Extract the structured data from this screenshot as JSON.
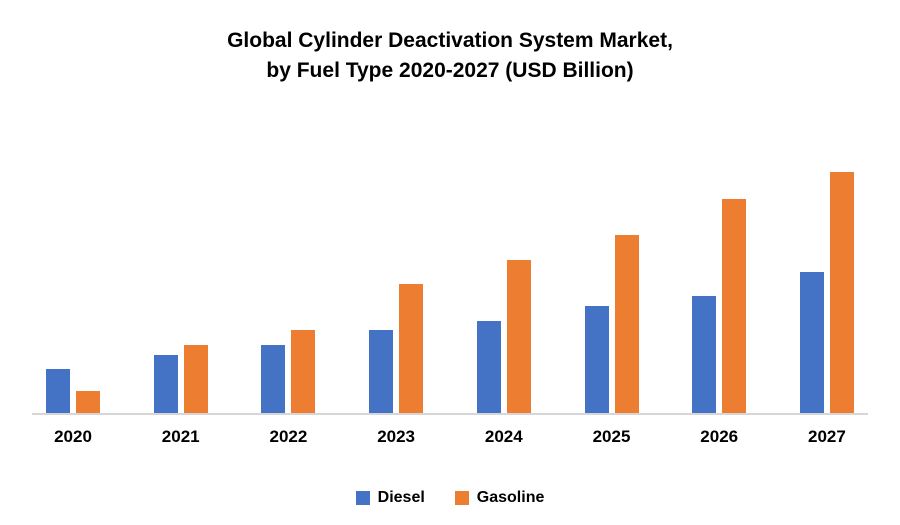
{
  "title": {
    "line1": "Global Cylinder Deactivation System Market,",
    "line2": "by Fuel Type 2020-2027 (USD Billion)"
  },
  "colors": {
    "diesel": "#4472C4",
    "gasoline": "#ED7D31",
    "axis": "#D6D6D6",
    "text": "#000000",
    "background": "#FFFFFF"
  },
  "legend": [
    {
      "label": "Diesel",
      "color": "#4472C4"
    },
    {
      "label": "Gasoline",
      "color": "#ED7D31"
    }
  ],
  "chart_data": {
    "type": "bar",
    "title": "Global Cylinder Deactivation System Market, by Fuel Type 2020-2027 (USD Billion)",
    "categories": [
      "2020",
      "2021",
      "2022",
      "2023",
      "2024",
      "2025",
      "2026",
      "2027"
    ],
    "series": [
      {
        "name": "Diesel",
        "color": "#4472C4",
        "values": [
          0.9,
          1.2,
          1.4,
          1.7,
          1.9,
          2.2,
          2.4,
          2.9
        ]
      },
      {
        "name": "Gasoline",
        "color": "#ED7D31",
        "values": [
          0.45,
          1.4,
          1.7,
          2.65,
          3.15,
          3.65,
          4.4,
          4.95
        ]
      }
    ],
    "xlabel": "",
    "ylabel": "",
    "ylim": [
      0,
      6
    ],
    "grid": false,
    "y_axis_visible": false,
    "legend_position": "bottom",
    "value_labels": false
  }
}
